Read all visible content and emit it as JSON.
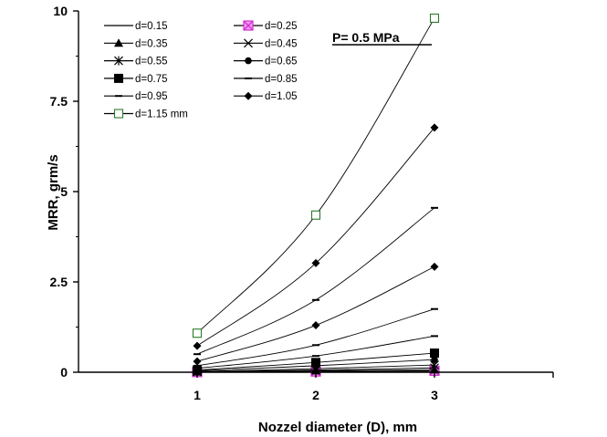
{
  "chart_data": {
    "type": "line",
    "xlabel": "Nozzel diameter (D), mm",
    "ylabel": "MRR,  grm/s",
    "annotation": "P= 0.5 MPa",
    "x": [
      1,
      2,
      3
    ],
    "x_ticks": [
      "1",
      "2",
      "3"
    ],
    "xlim": [
      0,
      4
    ],
    "ylim": [
      0,
      10
    ],
    "y_ticks": [
      "0",
      "2.5",
      "5",
      "7.5",
      "10"
    ],
    "grid": false,
    "legend_position": "top-left",
    "series": [
      {
        "name": "d=0.15",
        "marker": "none",
        "color": "#000000",
        "values": [
          0.002,
          0.01,
          0.03
        ]
      },
      {
        "name": "d=0.25",
        "marker": "x-square",
        "color": "#cc33cc",
        "values": [
          0.005,
          0.02,
          0.04
        ]
      },
      {
        "name": "d=0.35",
        "marker": "triangle",
        "color": "#000000",
        "values": [
          0.01,
          0.04,
          0.07
        ]
      },
      {
        "name": "d=0.45",
        "marker": "x",
        "color": "#000000",
        "values": [
          0.01,
          0.06,
          0.12
        ]
      },
      {
        "name": "d=0.55",
        "marker": "star",
        "color": "#000000",
        "values": [
          0.02,
          0.1,
          0.2
        ]
      },
      {
        "name": "d=0.65",
        "marker": "circle",
        "color": "#000000",
        "values": [
          0.04,
          0.18,
          0.35
        ]
      },
      {
        "name": "d=0.75",
        "marker": "square",
        "color": "#000000",
        "values": [
          0.06,
          0.27,
          0.53
        ]
      },
      {
        "name": "d=0.85",
        "marker": "dash",
        "color": "#000000",
        "values": [
          0.11,
          0.45,
          1.0
        ]
      },
      {
        "name": "d=0.95",
        "marker": "dash",
        "color": "#000000",
        "values": [
          0.18,
          0.75,
          1.75
        ]
      },
      {
        "name": "d=1.05",
        "marker": "diamond",
        "color": "#000000",
        "values": [
          0.3,
          1.3,
          2.92
        ]
      },
      {
        "name": "",
        "marker": "dash",
        "color": "#000000",
        "values": [
          0.5,
          2.0,
          4.55
        ]
      },
      {
        "name": "",
        "marker": "diamond",
        "color": "#000000",
        "values": [
          0.73,
          3.02,
          6.77
        ]
      },
      {
        "name": "d=1.15 mm",
        "marker": "open-square",
        "color": "#000000",
        "values": [
          1.08,
          4.35,
          9.8
        ]
      }
    ]
  }
}
